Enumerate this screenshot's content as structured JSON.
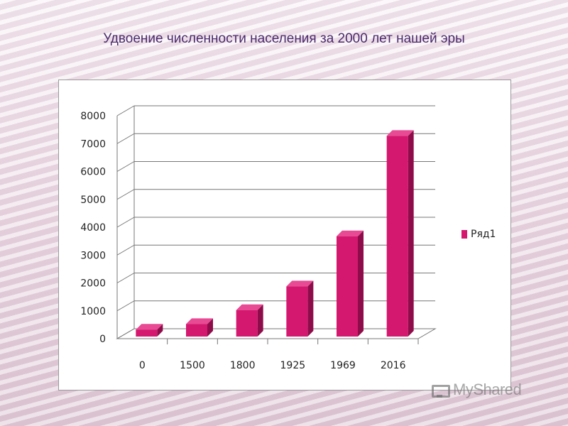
{
  "title": "Удвоение численности населения за 2000 лет нашей эры",
  "legend": {
    "label": "Ряд1"
  },
  "watermark": "MyShared",
  "colors": {
    "bar": "#d4176f",
    "bar_top": "#e84a93",
    "bar_side": "#8f0c4a",
    "grid": "#777777"
  },
  "chart_data": {
    "type": "bar",
    "categories": [
      "0",
      "1500",
      "1800",
      "1925",
      "1969",
      "2016"
    ],
    "series": [
      {
        "name": "Ряд1",
        "values": [
          250,
          450,
          950,
          1800,
          3600,
          7200
        ]
      }
    ],
    "ylim": [
      0,
      8000
    ],
    "yticks": [
      "0",
      "1000",
      "2000",
      "3000",
      "4000",
      "5000",
      "6000",
      "7000",
      "8000"
    ],
    "grid": true,
    "legend_position": "right",
    "three_d": true
  }
}
